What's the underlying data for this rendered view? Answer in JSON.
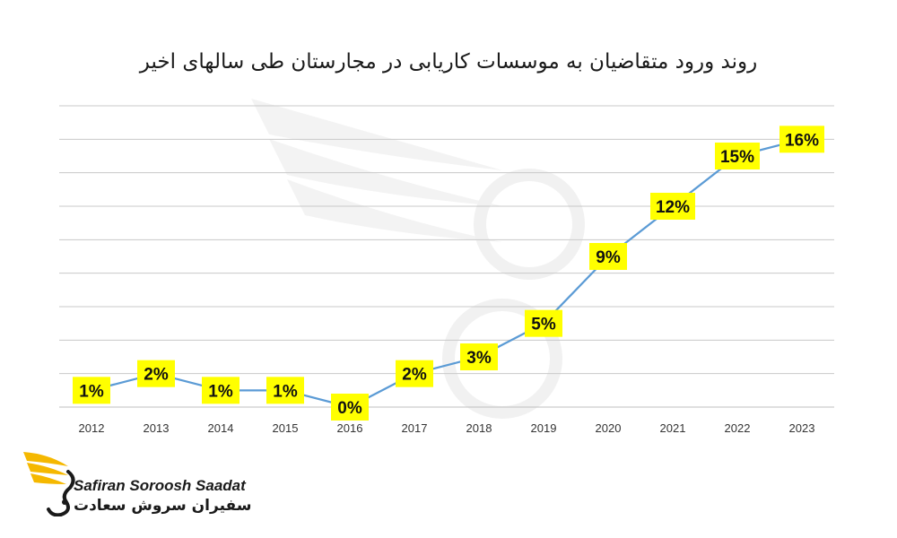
{
  "chart_data": {
    "type": "line",
    "title": "روند ورود متقاضیان به موسسات کاریابی در مجارستان طی سالهای اخیر",
    "categories": [
      "2012",
      "2013",
      "2014",
      "2015",
      "2016",
      "2017",
      "2018",
      "2019",
      "2020",
      "2021",
      "2022",
      "2023"
    ],
    "values": [
      1,
      2,
      1,
      1,
      0,
      2,
      3,
      5,
      9,
      12,
      15,
      16
    ],
    "data_labels": [
      "1%",
      "2%",
      "1%",
      "1%",
      "0%",
      "2%",
      "3%",
      "5%",
      "9%",
      "12%",
      "15%",
      "16%"
    ],
    "ylim": [
      0,
      18
    ],
    "y_gridlines": 9,
    "y_tick_labels_shown": false,
    "grid": true,
    "legend": "none",
    "colors": {
      "line": "#5b9bd5",
      "label_background": "#ffff00",
      "gridline": "#c8c8c8"
    }
  },
  "branding": {
    "latin_name": "Safiran Soroosh Saadat",
    "arabic_name": "سفیران سروش سعادت",
    "logo_icon": "winged-s-logo",
    "logo_color": "#f5b800"
  }
}
